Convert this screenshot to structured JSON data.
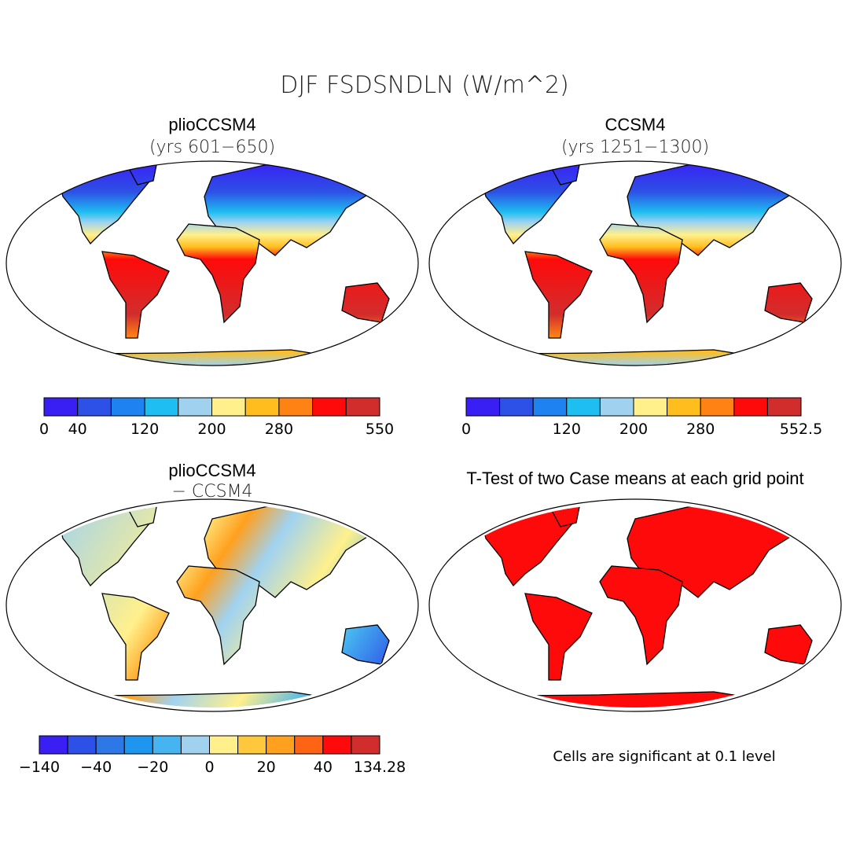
{
  "title": "DJF FSDSNDLN (W/m^2)",
  "panels": [
    {
      "title": "plioCCSM4",
      "subtitle": "(yrs 601−650)",
      "colorbar": {
        "colors": [
          "#3a1ff5",
          "#2d50e6",
          "#1e82f0",
          "#1ebef0",
          "#a0d2f0",
          "#fff08c",
          "#ffbe1e",
          "#ff8214",
          "#ff0a0a",
          "#d22d2d"
        ],
        "labels": [
          "0",
          "40",
          null,
          "120",
          null,
          "200",
          null,
          "280",
          null,
          null,
          "550"
        ]
      }
    },
    {
      "title": "CCSM4",
      "subtitle": "(yrs 1251−1300)",
      "colorbar": {
        "colors": [
          "#3a1ff5",
          "#2d50e6",
          "#1e82f0",
          "#1ebef0",
          "#a0d2f0",
          "#fff08c",
          "#ffbe1e",
          "#ff8214",
          "#ff0a0a",
          "#d22d2d"
        ],
        "labels": [
          "0",
          null,
          null,
          "120",
          null,
          "200",
          null,
          "280",
          null,
          null,
          "552.5"
        ]
      }
    },
    {
      "title": "plioCCSM4",
      "subtitle": "− CCSM4",
      "colorbar": {
        "colors": [
          "#3a1ff5",
          "#2d50e6",
          "#2d78e6",
          "#1e96f0",
          "#46b4f0",
          "#a0d2f0",
          "#fff08c",
          "#ffc83c",
          "#ffa01e",
          "#ff6414",
          "#ff0a0a",
          "#d22d2d"
        ],
        "labels": [
          "−140",
          null,
          "−40",
          null,
          "−20",
          null,
          "0",
          null,
          "20",
          null,
          "40",
          null,
          "134.28"
        ]
      }
    },
    {
      "title": "T-Test of two Case means at each grid point",
      "note": "Cells are significant at 0.1 level"
    }
  ]
}
